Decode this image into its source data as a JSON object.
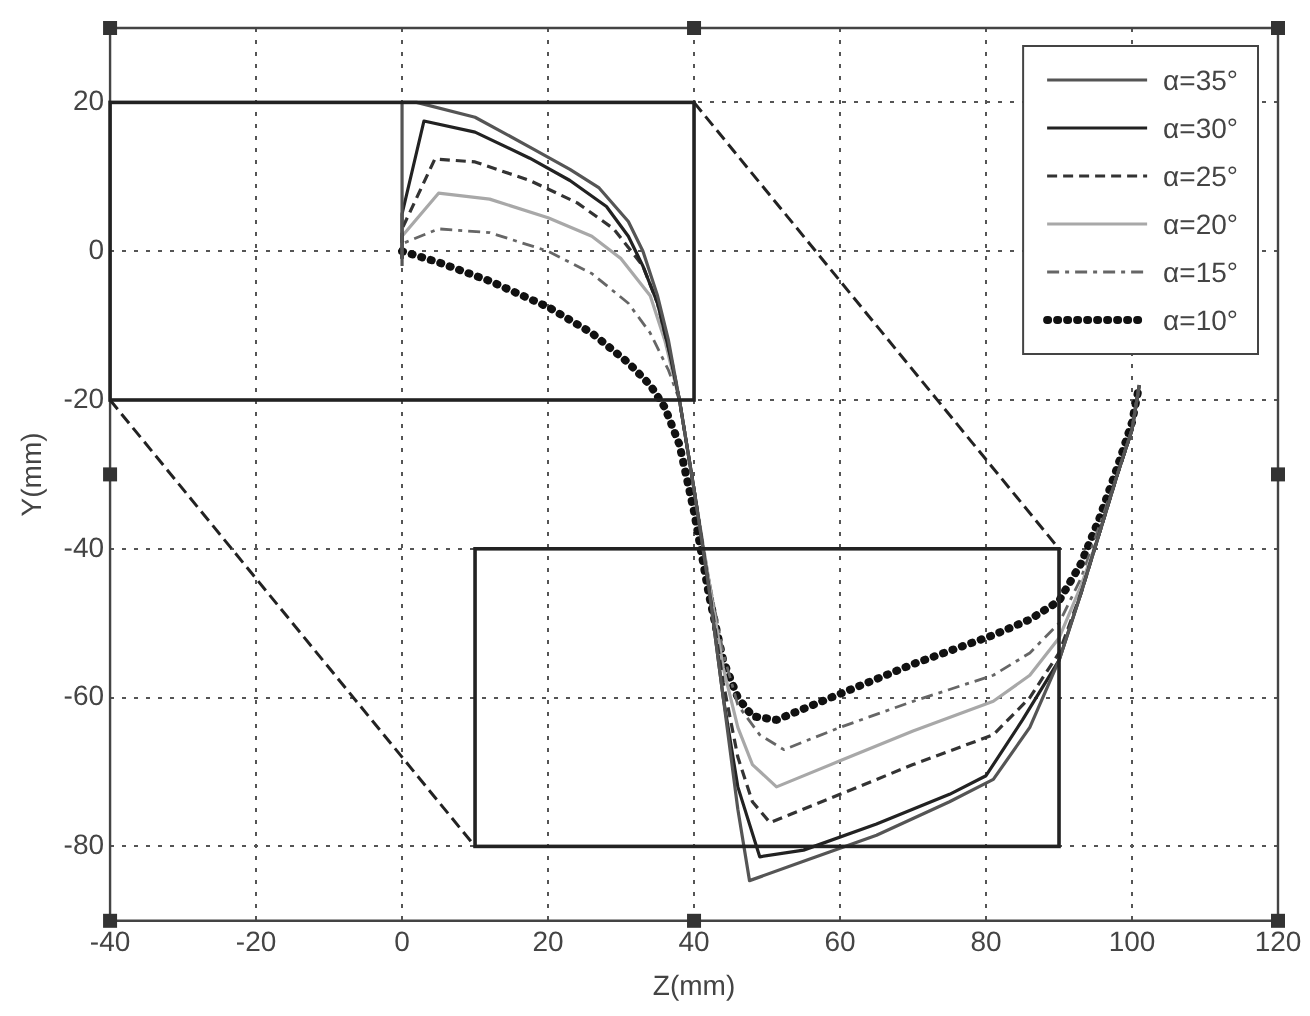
{
  "chart_data": {
    "type": "line",
    "xlabel": "Z(mm)",
    "ylabel": "Y(mm)",
    "xlim": [
      -40,
      120
    ],
    "xticks": [
      -40,
      -20,
      0,
      20,
      40,
      60,
      80,
      100,
      120
    ],
    "ylim": [
      -90,
      30
    ],
    "yticks": [
      -80,
      -60,
      -40,
      -20,
      0,
      20
    ],
    "grid": true,
    "legend": "top right",
    "marker": "none",
    "series": [
      {
        "name": "α=35°",
        "color": "#555555",
        "line_style": "solid",
        "x": [
          0,
          0,
          2,
          10,
          17.5,
          23,
          27,
          31,
          33,
          35,
          36.5,
          38,
          40,
          42,
          44,
          46,
          47.6,
          55,
          65,
          75,
          81,
          86,
          90,
          93,
          95.5,
          98,
          100,
          101
        ],
        "values": [
          -2,
          20,
          20,
          18,
          14,
          11,
          8.5,
          4,
          0,
          -6,
          -12,
          -20,
          -32,
          -45,
          -60,
          -75,
          -84.6,
          -82,
          -78.5,
          -74,
          -71,
          -64,
          -55,
          -46,
          -38,
          -30,
          -24,
          -18
        ]
      },
      {
        "name": "α=30°",
        "color": "#222222",
        "line_style": "solid",
        "x": [
          0,
          0,
          3,
          10,
          17.5,
          23,
          28,
          31,
          33,
          35,
          36.5,
          38,
          40,
          42,
          44,
          46,
          49,
          55,
          65,
          75,
          80,
          85,
          90,
          93,
          95.5,
          98,
          100,
          101
        ],
        "values": [
          -1,
          5,
          17.5,
          16,
          12.5,
          9.5,
          6,
          2,
          -2,
          -7,
          -13,
          -20,
          -32,
          -45,
          -60,
          -72,
          -81.4,
          -80.5,
          -77,
          -73,
          -70.5,
          -63,
          -55,
          -46,
          -38,
          -30,
          -24,
          -18
        ]
      },
      {
        "name": "α=25°",
        "color": "#333333",
        "line_style": "dashed",
        "x": [
          0,
          0,
          4.5,
          10,
          17.5,
          24,
          29,
          33,
          35,
          37,
          38,
          40,
          42,
          44,
          46,
          48,
          50.4,
          60,
          70,
          81,
          86,
          90,
          93,
          95.5,
          98,
          100,
          101
        ],
        "values": [
          -1,
          3,
          12.4,
          12,
          9.5,
          6.5,
          3,
          -2,
          -7,
          -15,
          -20,
          -32,
          -45,
          -58,
          -68,
          -74,
          -76.8,
          -73,
          -69,
          -65,
          -60,
          -54,
          -46,
          -38,
          -30,
          -24,
          -18
        ]
      },
      {
        "name": "α=20°",
        "color": "#a8a8a8",
        "line_style": "solid",
        "x": [
          0,
          0,
          5,
          12,
          20,
          26,
          30,
          34,
          36,
          38,
          40,
          42,
          44,
          46,
          48,
          51.3,
          60,
          70,
          81,
          86,
          90,
          93,
          95.5,
          98,
          100,
          101
        ],
        "values": [
          -1,
          2,
          7.8,
          7,
          4.5,
          2,
          -1,
          -6,
          -12,
          -20,
          -32,
          -44,
          -56,
          -64,
          -69,
          -72,
          -68.5,
          -64.5,
          -60.5,
          -57,
          -52,
          -45,
          -38,
          -30,
          -24,
          -18
        ]
      },
      {
        "name": "α=15°",
        "color": "#666666",
        "line_style": "dashdot",
        "x": [
          0,
          0,
          5,
          12,
          20,
          26,
          31,
          34,
          36.5,
          38,
          40,
          42,
          44,
          46,
          49,
          52.3,
          60,
          70,
          81,
          86,
          90,
          93,
          95.5,
          98,
          100,
          101
        ],
        "values": [
          -1,
          1,
          3,
          2.5,
          0,
          -3,
          -7,
          -11,
          -16,
          -20,
          -32,
          -44,
          -54,
          -61,
          -65,
          -67,
          -64,
          -60.5,
          -57,
          -54,
          -50,
          -44,
          -37,
          -30,
          -24,
          -18
        ]
      },
      {
        "name": "α=10°",
        "color": "#111111",
        "line_style": "dotted",
        "x": [
          0,
          5,
          12,
          20,
          26,
          31,
          34,
          36,
          38,
          40,
          42,
          44,
          46,
          48,
          51.3,
          60,
          70,
          81,
          86,
          90,
          93,
          95.5,
          98,
          100,
          101
        ],
        "values": [
          0,
          -1.5,
          -4,
          -7.5,
          -11,
          -15,
          -18,
          -21,
          -26,
          -35,
          -46,
          -55,
          -60,
          -62.5,
          -63,
          -59.5,
          -55.5,
          -51.6,
          -49.5,
          -47,
          -42,
          -36,
          -29,
          -23,
          -18
        ]
      }
    ]
  }
}
